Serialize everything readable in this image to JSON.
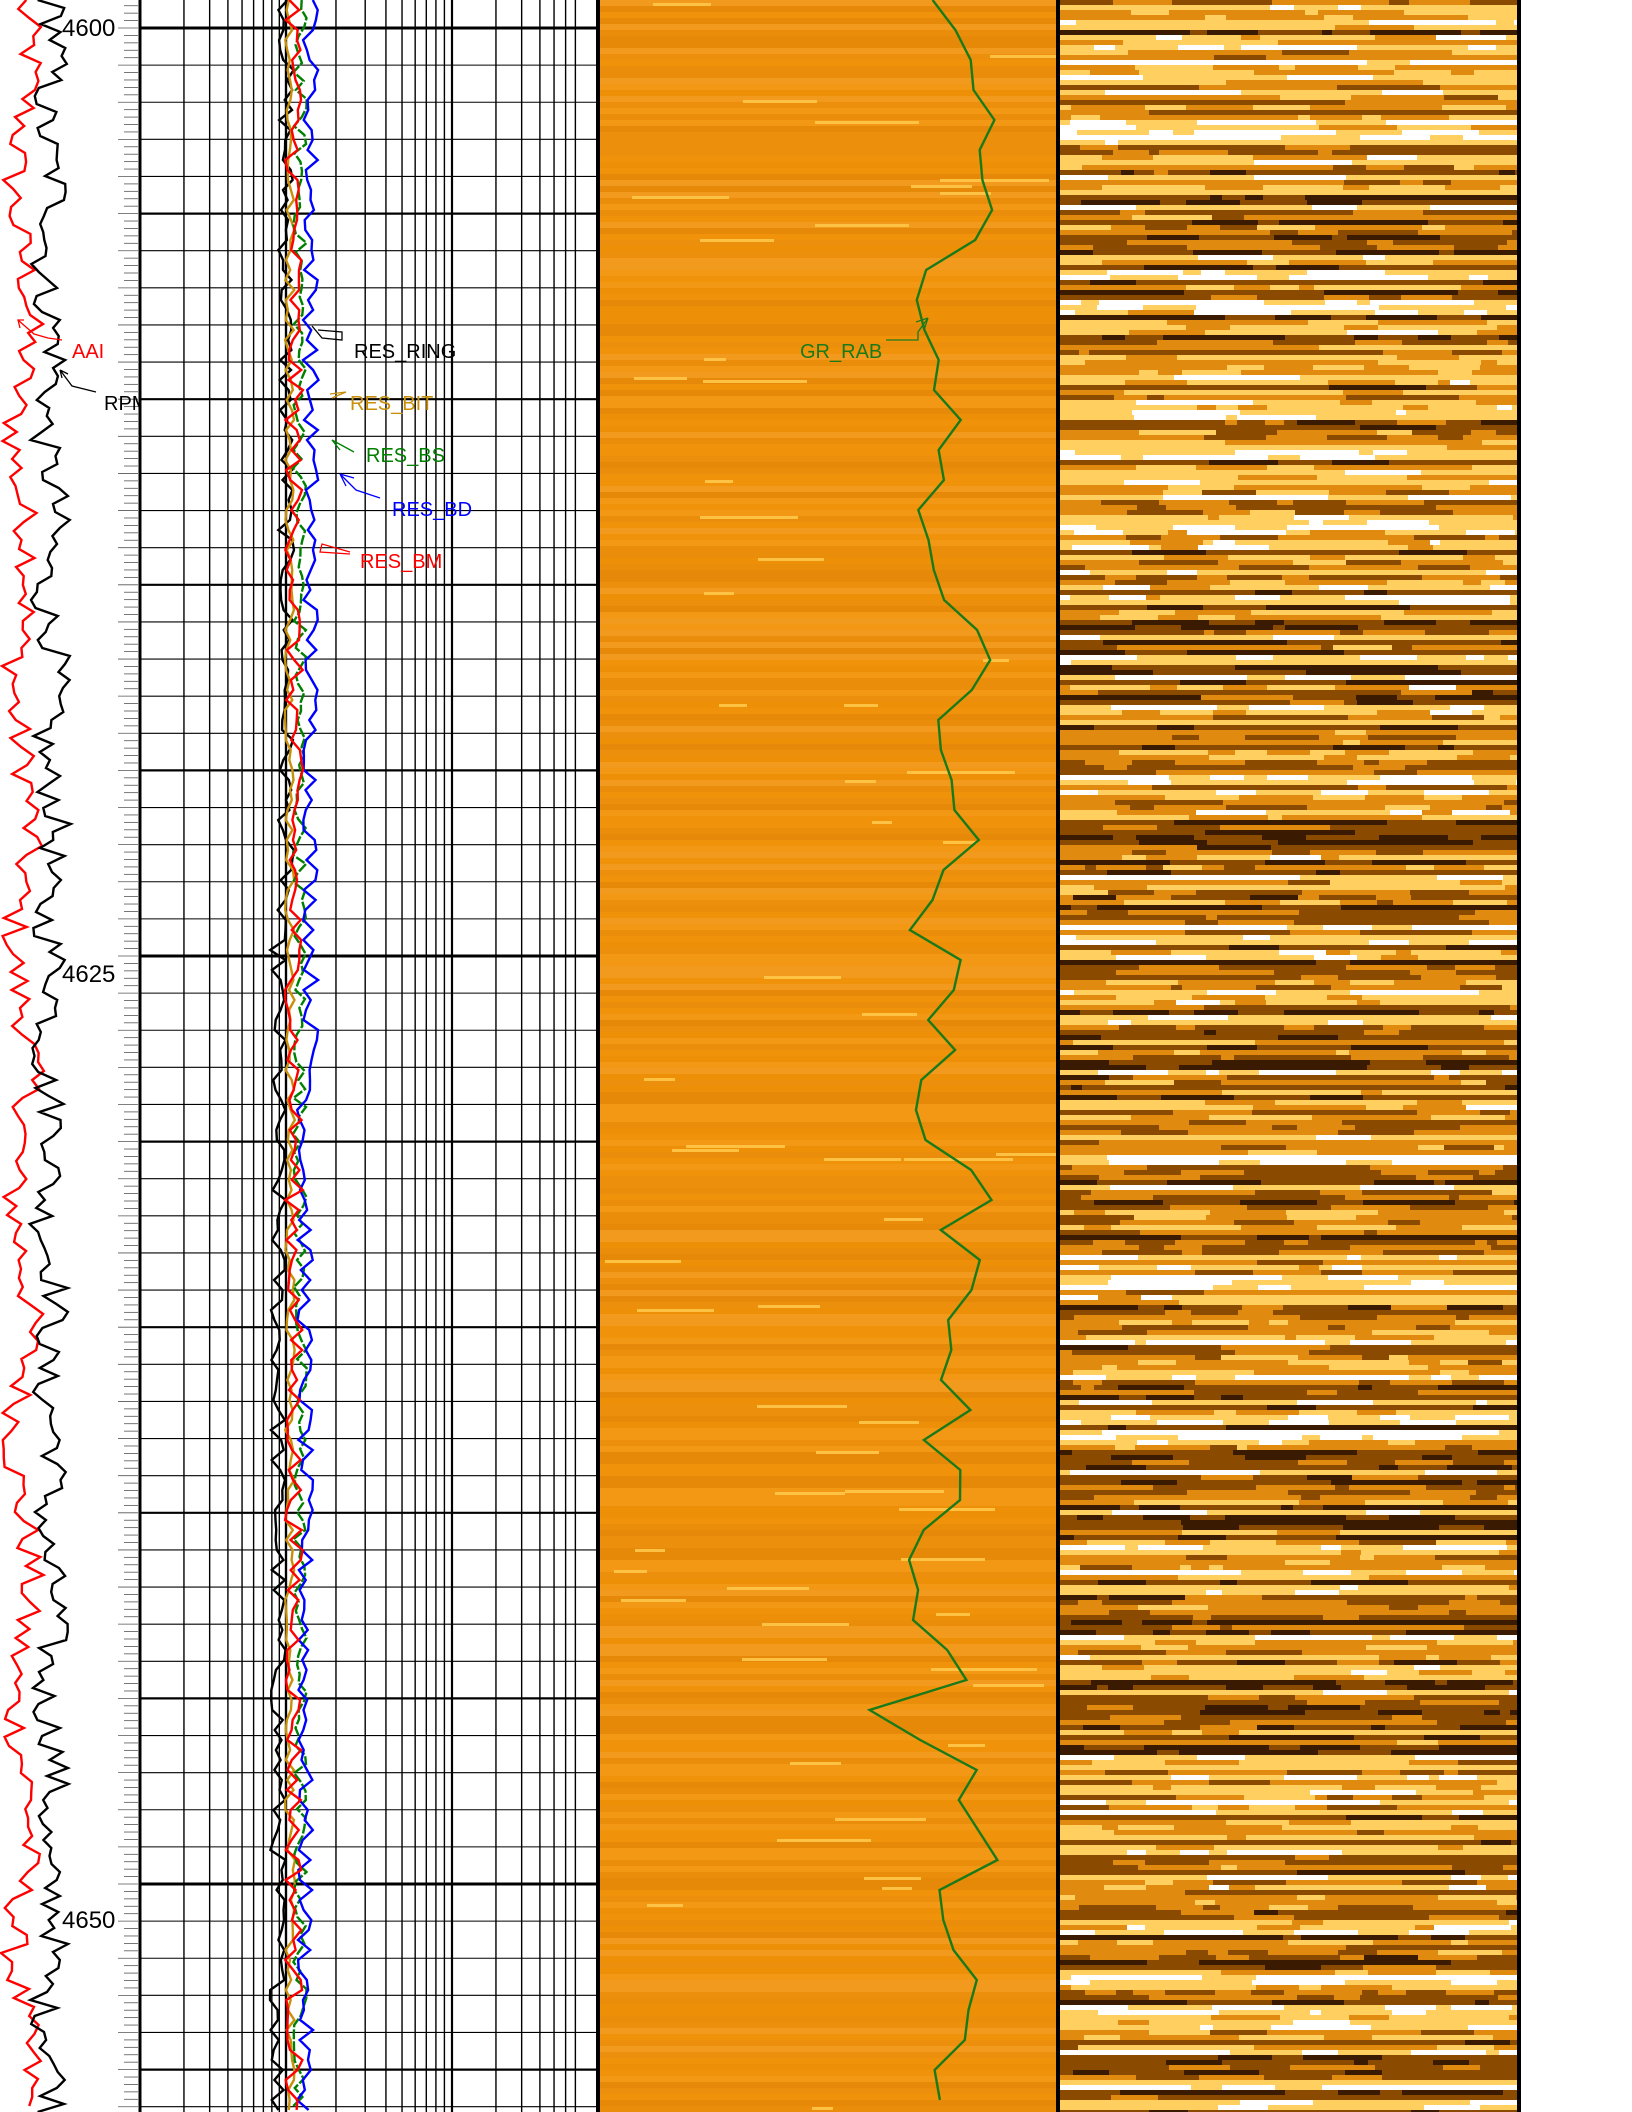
{
  "chart_data": {
    "type": "line",
    "title": "",
    "y_axis": {
      "label": "",
      "range": [
        4600,
        4655
      ],
      "ticks": [
        4600,
        4625,
        4650
      ],
      "inverted": true
    },
    "tracks": [
      {
        "name": "track-1",
        "curves": [
          {
            "name": "AAI",
            "color": "#ff0000"
          },
          {
            "name": "RPM_RAB",
            "color": "#000000"
          }
        ]
      },
      {
        "name": "track-2",
        "scale": "logarithmic",
        "curves": [
          {
            "name": "RES_RING",
            "color": "#000000"
          },
          {
            "name": "RES_BIT",
            "color": "#c8900a"
          },
          {
            "name": "RES_BS",
            "color": "#008000"
          },
          {
            "name": "RES_BD",
            "color": "#0000ff"
          },
          {
            "name": "RES_BM",
            "color": "#ff0000"
          }
        ]
      },
      {
        "name": "track-3",
        "curves": [
          {
            "name": "GR_RAB",
            "color": "#1a7a1a"
          }
        ],
        "background": "#f0930a"
      },
      {
        "name": "track-4",
        "image": "resistivity-image",
        "palette": [
          "#3a1a00",
          "#8a4a00",
          "#e08a10",
          "#ffd060",
          "#ffffff"
        ]
      }
    ],
    "grid": true,
    "legend": "inline"
  },
  "labels": {
    "aai": "AAI",
    "rpm": "RPM_RAB",
    "res_ring": "RES_RING",
    "res_bit": "RES_BIT",
    "res_bs": "RES_BS",
    "res_bd": "RES_BD",
    "res_bm": "RES_BM",
    "gr": "GR_RAB"
  },
  "depths": {
    "d1": "4600",
    "d2": "4625",
    "d3": "4650"
  }
}
